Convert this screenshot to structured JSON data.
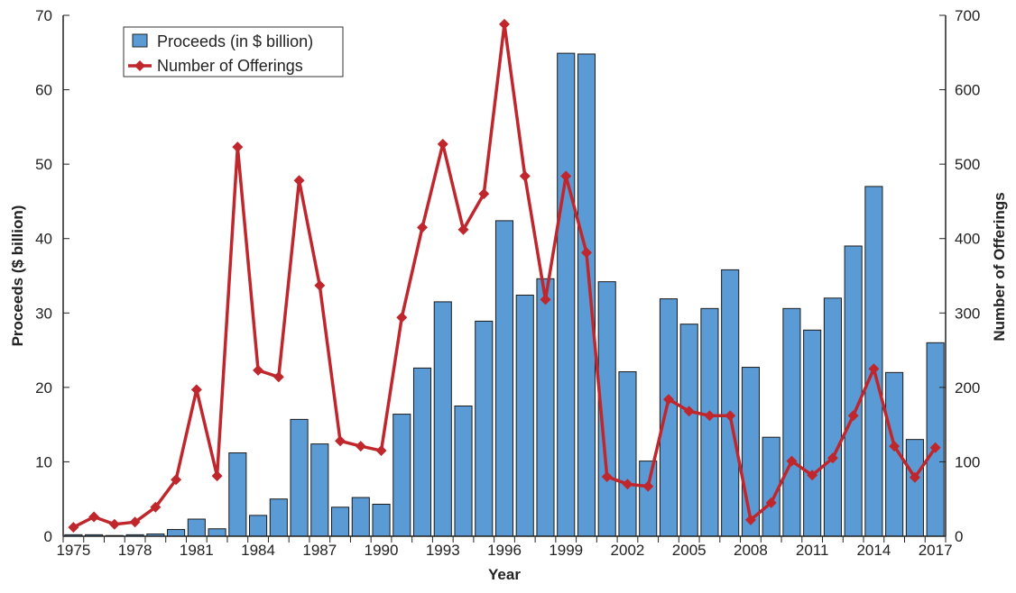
{
  "chart_data": {
    "type": "bar+line",
    "xlabel": "Year",
    "ylabel_left": "Proceeds ($ billion)",
    "ylabel_right": "Number of Offerings",
    "ylim_left": [
      0,
      70
    ],
    "ylim_right": [
      0,
      700
    ],
    "yticks_left": [
      0,
      10,
      20,
      30,
      40,
      50,
      60,
      70
    ],
    "yticks_right": [
      0,
      100,
      200,
      300,
      400,
      500,
      600,
      700
    ],
    "xtick_labels": [
      "1975",
      "1978",
      "1981",
      "1984",
      "1987",
      "1990",
      "1993",
      "1996",
      "1999",
      "2002",
      "2005",
      "2008",
      "2011",
      "2014",
      "2017"
    ],
    "legend_placement": "top-left",
    "grid": false,
    "categories": [
      1975,
      1976,
      1977,
      1978,
      1979,
      1980,
      1981,
      1982,
      1983,
      1984,
      1985,
      1986,
      1987,
      1988,
      1989,
      1990,
      1991,
      1992,
      1993,
      1994,
      1995,
      1996,
      1997,
      1998,
      1999,
      2000,
      2001,
      2002,
      2003,
      2004,
      2005,
      2006,
      2007,
      2008,
      2009,
      2010,
      2011,
      2012,
      2013,
      2014,
      2015,
      2016,
      2017
    ],
    "series": [
      {
        "name": "Proceeds (in $ billion)",
        "type": "bar",
        "axis": "left",
        "color": "#5b9bd5",
        "values": [
          0.2,
          0.2,
          0.1,
          0.2,
          0.3,
          0.9,
          2.3,
          1.0,
          11.2,
          2.8,
          5.0,
          15.7,
          12.4,
          3.9,
          5.2,
          4.3,
          16.4,
          22.6,
          31.5,
          17.5,
          28.9,
          42.4,
          32.4,
          34.6,
          64.9,
          64.8,
          34.2,
          22.1,
          10.1,
          31.9,
          28.5,
          30.6,
          35.8,
          22.7,
          13.3,
          30.6,
          27.7,
          32.0,
          39.0,
          47.0,
          22.0,
          13.0,
          26.0
        ]
      },
      {
        "name": "Number of Offerings",
        "type": "line",
        "axis": "right",
        "color": "#c0272d",
        "values": [
          12,
          26,
          16,
          19,
          39,
          76,
          197,
          81,
          523,
          223,
          214,
          478,
          337,
          128,
          121,
          115,
          294,
          415,
          527,
          412,
          460,
          688,
          484,
          318,
          484,
          381,
          80,
          70,
          67,
          184,
          168,
          162,
          162,
          22,
          45,
          101,
          82,
          105,
          162,
          225,
          121,
          79,
          119
        ]
      }
    ]
  }
}
